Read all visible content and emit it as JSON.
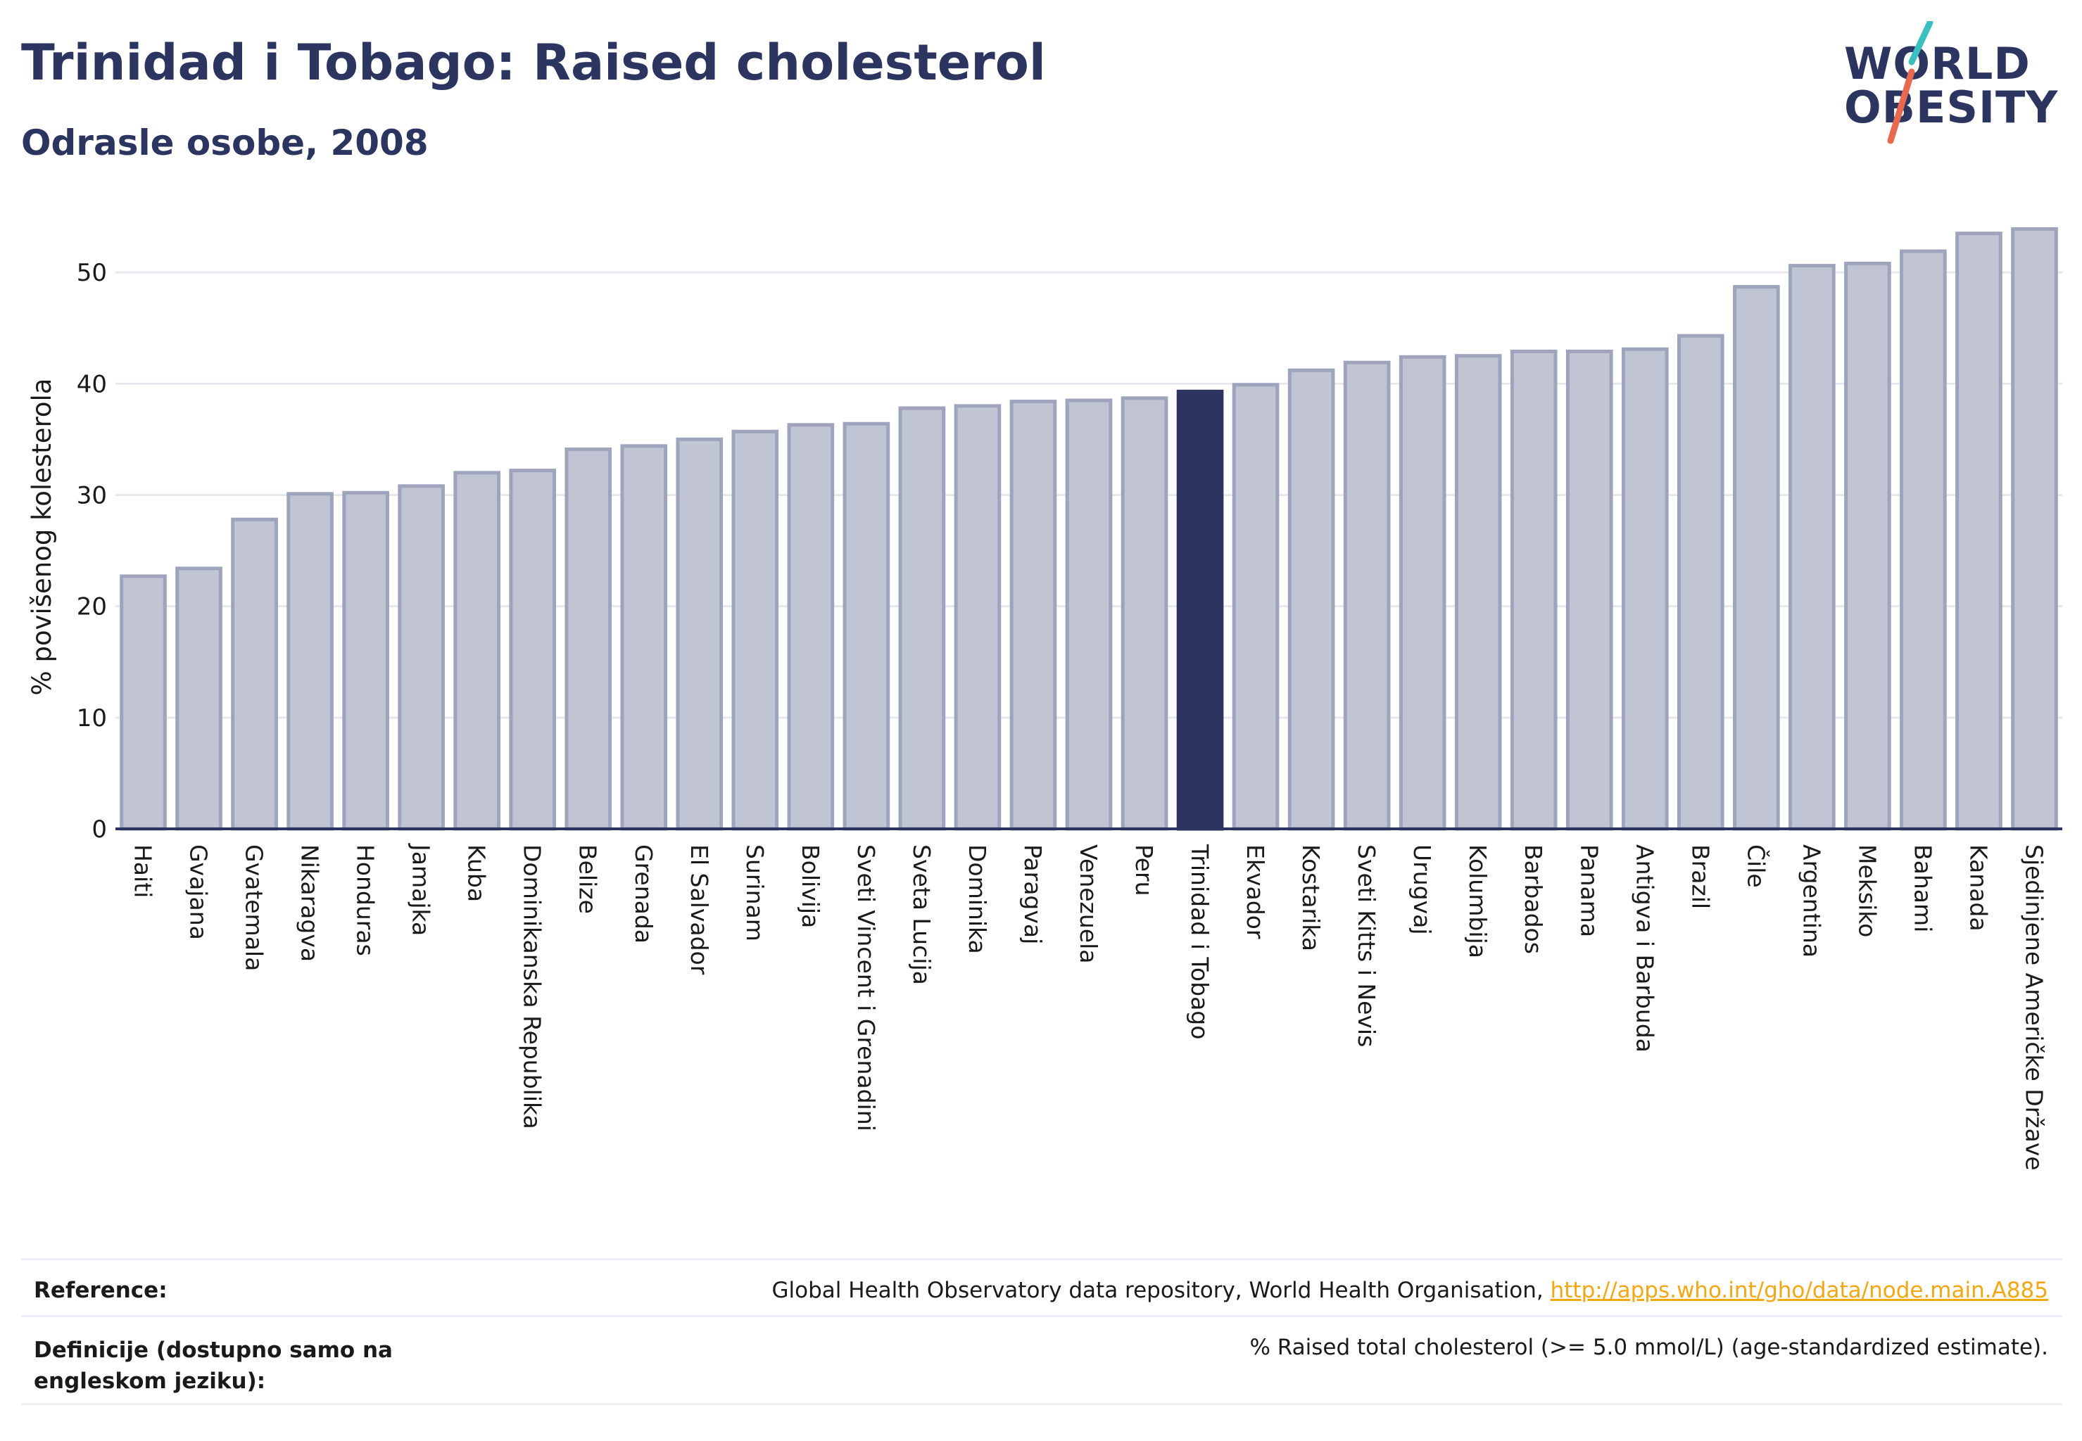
{
  "header": {
    "title": "Trinidad i Tobago: Raised cholesterol",
    "subtitle": "Odrasle osobe, 2008"
  },
  "logo": {
    "line1": "WORLD",
    "line2": "OBESITY",
    "slash_colors": [
      "#3bbfbf",
      "#e8694f"
    ]
  },
  "colors": {
    "bar": "#c0c4d3",
    "bar_border": "#9ea4bb",
    "highlight": "#2b3560",
    "grid": "#e6e8ee",
    "axis": "#2b3560"
  },
  "chart_data": {
    "type": "bar",
    "title": "Trinidad i Tobago: Raised cholesterol",
    "subtitle": "Odrasle osobe, 2008",
    "ylabel": "% povišenog kolesterola",
    "xlabel": "",
    "ylim": [
      0,
      55
    ],
    "yticks": [
      0,
      10,
      20,
      30,
      40,
      50
    ],
    "grid": true,
    "highlight": "Trinidad i Tobago",
    "categories": [
      "Haiti",
      "Gvajana",
      "Gvatemala",
      "Nikaragva",
      "Honduras",
      "Jamajka",
      "Kuba",
      "Dominikanska Republika",
      "Belize",
      "Grenada",
      "El Salvador",
      "Surinam",
      "Bolivija",
      "Sveti Vincent i Grenadini",
      "Sveta Lucija",
      "Dominika",
      "Paragvaj",
      "Venezuela",
      "Peru",
      "Trinidad i Tobago",
      "Ekvador",
      "Kostarika",
      "Sveti Kitts i Nevis",
      "Urugvaj",
      "Kolumbija",
      "Barbados",
      "Panama",
      "Antigva i Barbuda",
      "Brazil",
      "Čile",
      "Argentina",
      "Meksiko",
      "Bahami",
      "Kanada",
      "Sjedinjene Američke Države"
    ],
    "values": [
      22.7,
      23.4,
      27.8,
      30.1,
      30.2,
      30.8,
      32.0,
      32.2,
      34.1,
      34.4,
      35.0,
      35.7,
      36.3,
      36.4,
      37.8,
      38.0,
      38.4,
      38.5,
      38.7,
      39.3,
      39.9,
      41.2,
      41.9,
      42.4,
      42.5,
      42.9,
      42.9,
      43.1,
      44.3,
      48.7,
      50.6,
      50.8,
      51.9,
      53.5,
      53.9
    ]
  },
  "footer": {
    "reference_label": "Reference:",
    "reference_text": "Global Health Observatory data repository, World Health Organisation, ",
    "reference_link": "http://apps.who.int/gho/data/node.main.A885",
    "definition_label": "Definicije (dostupno samo na engleskom jeziku):",
    "definition_text": "% Raised total cholesterol (>= 5.0 mmol/L) (age-standardized estimate)."
  }
}
